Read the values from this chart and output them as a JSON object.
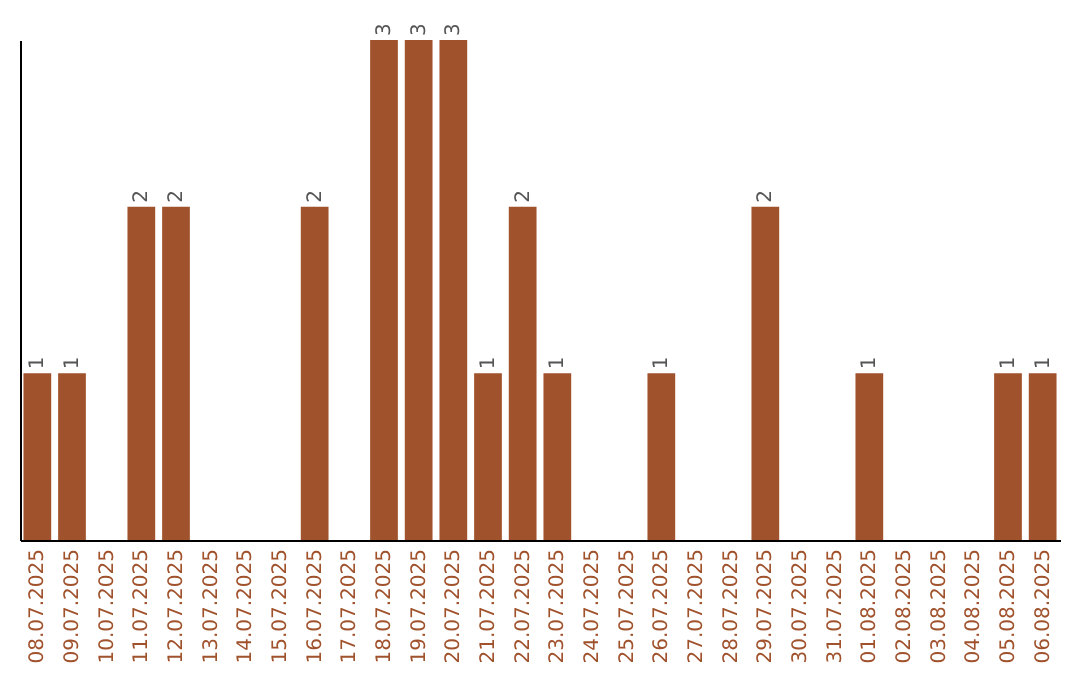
{
  "chart_data": {
    "type": "bar",
    "color": "#a0522d",
    "categories": [
      "08.07.2025",
      "09.07.2025",
      "10.07.2025",
      "11.07.2025",
      "12.07.2025",
      "13.07.2025",
      "14.07.2025",
      "15.07.2025",
      "16.07.2025",
      "17.07.2025",
      "18.07.2025",
      "19.07.2025",
      "20.07.2025",
      "21.07.2025",
      "22.07.2025",
      "23.07.2025",
      "24.07.2025",
      "25.07.2025",
      "26.07.2025",
      "27.07.2025",
      "28.07.2025",
      "29.07.2025",
      "30.07.2025",
      "31.07.2025",
      "01.08.2025",
      "02.08.2025",
      "03.08.2025",
      "04.08.2025",
      "05.08.2025",
      "06.08.2025"
    ],
    "values": [
      1,
      1,
      0,
      2,
      2,
      0,
      0,
      0,
      2,
      0,
      3,
      3,
      3,
      1,
      2,
      1,
      0,
      0,
      1,
      0,
      0,
      2,
      0,
      0,
      1,
      0,
      0,
      0,
      1,
      1
    ],
    "value_labels": [
      "1",
      "1",
      null,
      "2",
      "2",
      null,
      null,
      null,
      "2",
      null,
      "3",
      "3",
      "3",
      "1",
      "2",
      "1",
      null,
      null,
      "1",
      null,
      null,
      "2",
      null,
      null,
      "1",
      null,
      null,
      null,
      "1",
      "1"
    ],
    "grid": false
  }
}
